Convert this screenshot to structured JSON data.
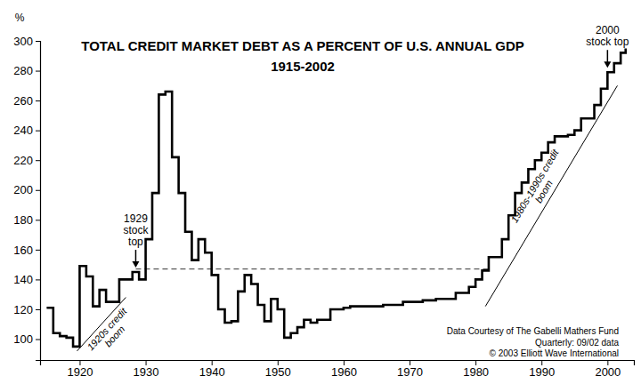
{
  "chart_data": {
    "type": "line",
    "title": "TOTAL CREDIT MARKET DEBT AS A PERCENT OF U.S. ANNUAL GDP",
    "subtitle": "1915-2002",
    "ylabel": "%",
    "color": "#000000",
    "line_style": "step",
    "grid": false,
    "x": [
      1915,
      1916,
      1917,
      1918,
      1919,
      1920,
      1921,
      1922,
      1923,
      1924,
      1925,
      1926,
      1927,
      1928,
      1929,
      1930,
      1931,
      1932,
      1933,
      1934,
      1935,
      1936,
      1937,
      1938,
      1939,
      1940,
      1941,
      1942,
      1943,
      1944,
      1945,
      1946,
      1947,
      1948,
      1949,
      1950,
      1951,
      1952,
      1953,
      1954,
      1955,
      1956,
      1957,
      1958,
      1959,
      1960,
      1961,
      1962,
      1963,
      1964,
      1965,
      1966,
      1967,
      1968,
      1969,
      1970,
      1971,
      1972,
      1973,
      1974,
      1975,
      1976,
      1977,
      1978,
      1979,
      1980,
      1981,
      1982,
      1983,
      1984,
      1985,
      1986,
      1987,
      1988,
      1989,
      1990,
      1991,
      1992,
      1993,
      1994,
      1995,
      1996,
      1997,
      1998,
      1999,
      2000,
      2001,
      2002,
      2002.75
    ],
    "values": [
      121,
      104,
      102,
      101,
      95,
      149,
      142,
      122,
      133,
      125,
      125,
      140,
      140,
      145,
      140,
      167,
      198,
      264,
      266,
      222,
      198,
      172,
      153,
      167,
      158,
      143,
      120,
      111,
      112,
      132,
      143,
      137,
      123,
      112,
      127,
      120,
      101,
      104,
      108,
      113,
      111,
      113,
      113,
      120,
      120,
      121,
      122,
      122,
      122,
      122,
      122,
      123,
      123,
      123,
      125,
      125,
      125,
      126,
      126,
      127,
      127,
      127,
      131,
      131,
      135,
      140,
      146,
      155,
      155,
      167,
      183,
      198,
      205,
      214,
      220,
      225,
      232,
      236,
      236,
      237,
      240,
      248,
      248,
      257,
      268,
      279,
      285,
      292,
      295
    ],
    "xlim": [
      1914,
      2004
    ],
    "xticks": [
      1920,
      1930,
      1940,
      1950,
      1960,
      1970,
      1980,
      1990,
      2000
    ],
    "ylim": [
      86,
      300
    ],
    "yticks": [
      100,
      120,
      140,
      160,
      180,
      200,
      220,
      240,
      260,
      280,
      300
    ],
    "reference_line": {
      "y": 147,
      "x": [
        1928.5,
        1982
      ]
    },
    "annotations": [
      {
        "text": [
          "1929",
          "stock",
          "top"
        ],
        "x": 1928.5
      },
      {
        "text": [
          "2000",
          "stock top"
        ],
        "x": 2000
      },
      {
        "text": [
          "1920s credit",
          "boom"
        ],
        "line": {
          "x": [
            1919.6,
            1927
          ],
          "y": [
            92,
            128
          ]
        }
      },
      {
        "text": [
          "1980s-1990s credit",
          "boom"
        ],
        "line": {
          "x": [
            1981.5,
            2001.5
          ],
          "y": [
            122,
            270
          ]
        }
      }
    ],
    "source": [
      "Data Courtesy of The Gabelli Mathers Fund",
      "Quarterly: 09/02 data",
      "© 2003 Elliott Wave International"
    ]
  }
}
